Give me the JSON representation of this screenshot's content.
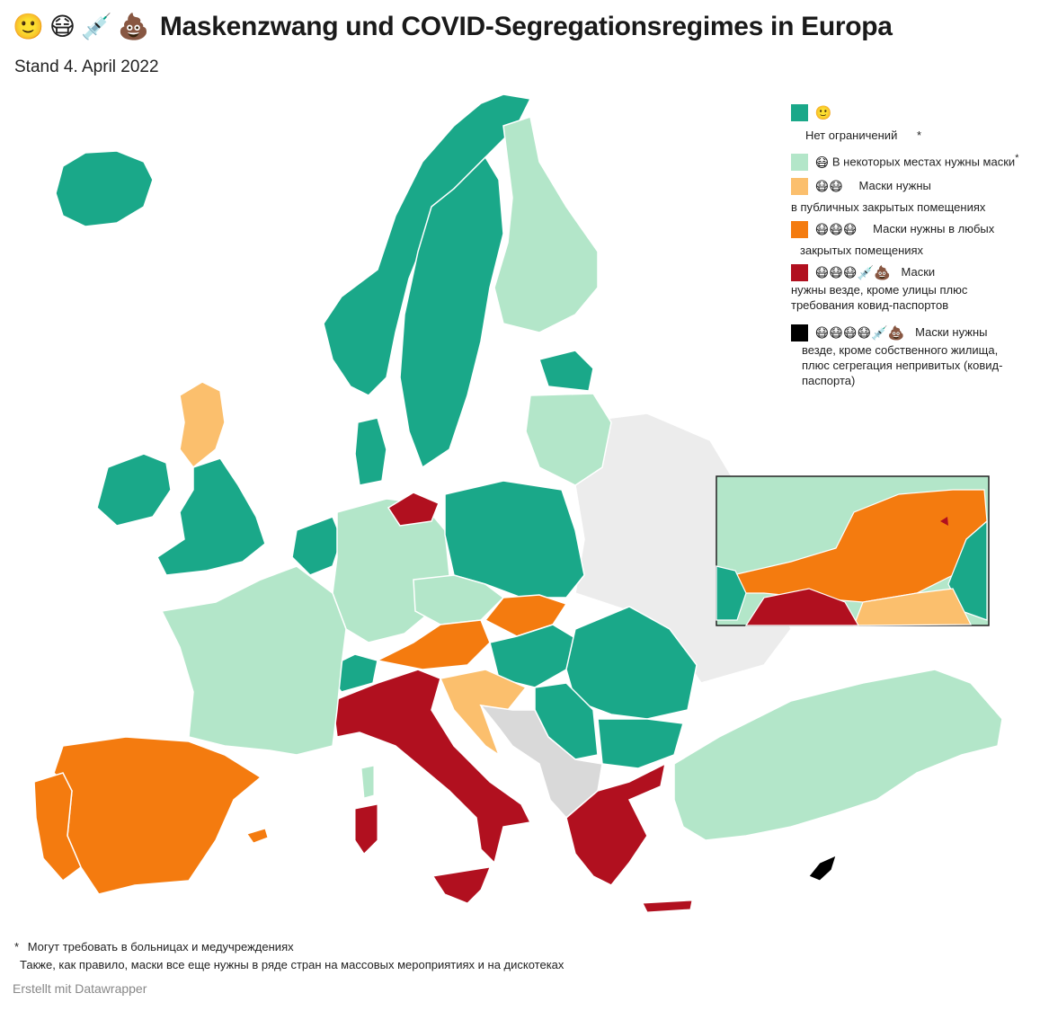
{
  "header": {
    "emojis": [
      "🙂",
      "😷",
      "💉",
      "💩"
    ],
    "title": "Maskenzwang und COVID-Segregationsregimes in Europa",
    "subtitle": "Stand 4. April 2022"
  },
  "legend": {
    "items": [
      {
        "color": "#1aa889",
        "emojis": "🙂",
        "label": "Нет ограничений",
        "star": "*"
      },
      {
        "color": "#b3e6c9",
        "emojis": "😷",
        "label": "В некоторых местах нужны маски",
        "star": "*"
      },
      {
        "color": "#fbbf6d",
        "emojis": "😷😷",
        "label": "Маски нужны",
        "label2": "в публичных закрытых помещениях"
      },
      {
        "color": "#f47b0f",
        "emojis": "😷😷😷",
        "label": "Маски нужны в любых",
        "label2": "закрытых помещениях"
      },
      {
        "color": "#b1101f",
        "emojis": "😷😷😷💉💩",
        "label": "Маски",
        "label2": "нужны везде, кроме улицы плюс",
        "label3": "требования ковид-паспортов"
      },
      {
        "color": "#000000",
        "emojis": "😷😷😷😷💉💩",
        "label": "Маски нужны",
        "label2": "везде, кроме собственного жилища,",
        "label3": "плюс сегрегация непривитых (ковид-",
        "label4": "паспорта)"
      }
    ]
  },
  "colors": {
    "no_data": "#ececec",
    "gray_balkans": "#d9d9d9"
  },
  "footnotes": {
    "line1": "Могут требовать в больницах и медучреждениях",
    "line1_star": "*",
    "line2": "Также, как правило, маски все еще нужны в ряде стран на массовых мероприятиях и на дискотеках"
  },
  "credit": "Erstellt mit Datawrapper"
}
